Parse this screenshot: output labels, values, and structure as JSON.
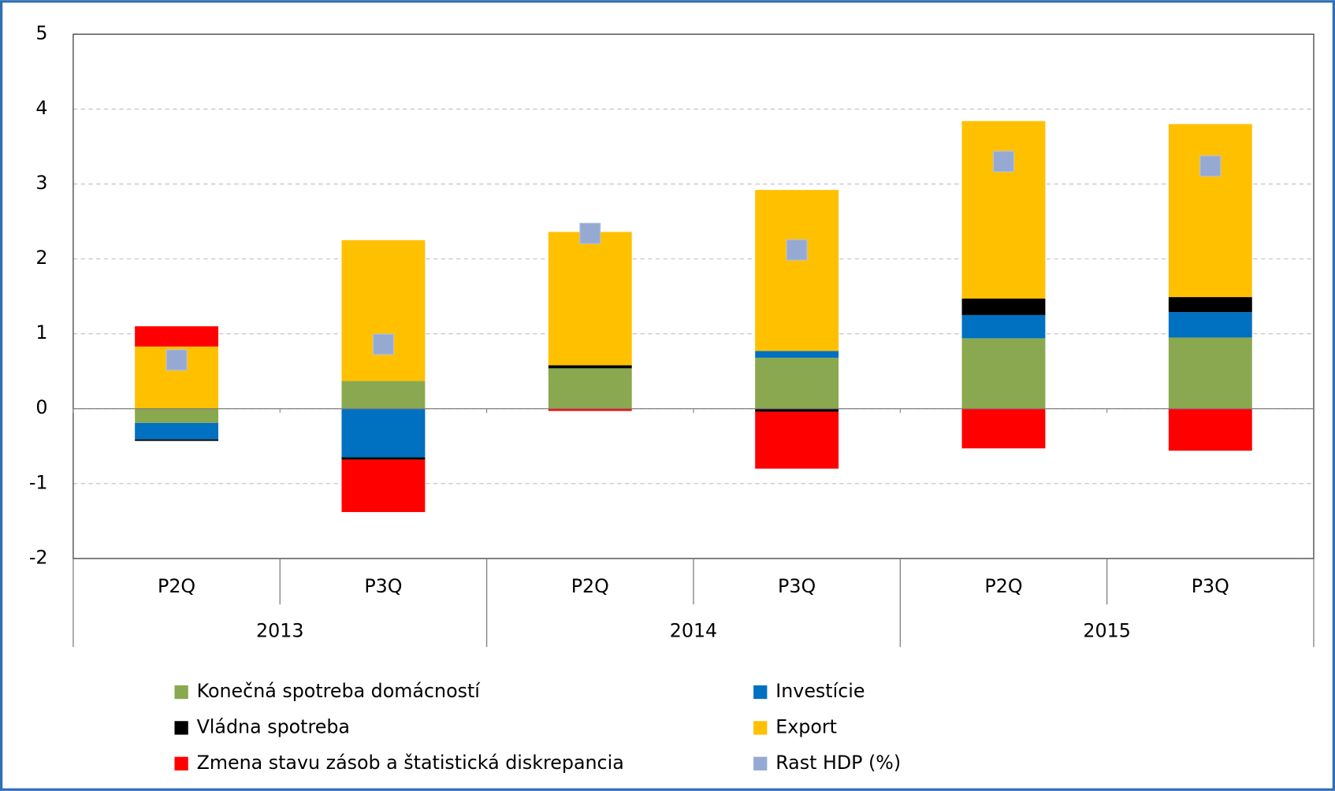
{
  "chart_data": {
    "type": "bar",
    "stacked": true,
    "categories": [
      "P2Q",
      "P3Q",
      "P2Q",
      "P3Q",
      "P2Q",
      "P3Q"
    ],
    "groups": [
      "2013",
      "2014",
      "2015"
    ],
    "series": [
      {
        "name": "Konečná spotreba domácností",
        "color": "#8aa84f",
        "values": [
          -0.19,
          0.37,
          0.54,
          0.68,
          0.94,
          0.95
        ]
      },
      {
        "name": "Investície",
        "color": "#0070c0",
        "values": [
          -0.22,
          -0.65,
          0.0,
          0.09,
          0.31,
          0.34
        ]
      },
      {
        "name": "Vládna spotreba",
        "color": "#000000",
        "values": [
          -0.02,
          -0.03,
          0.04,
          -0.04,
          0.22,
          0.2
        ]
      },
      {
        "name": "Export",
        "color": "#ffc000",
        "values": [
          0.83,
          1.88,
          1.78,
          2.15,
          2.37,
          2.31
        ]
      },
      {
        "name": "Zmena stavu zásob a štatistická diskrepancia",
        "color": "#ff0000",
        "values": [
          0.27,
          -0.7,
          -0.03,
          -0.76,
          -0.53,
          -0.56
        ]
      },
      {
        "name": "Rast HDP (%)",
        "color": "#95a9d3",
        "type": "scatter",
        "values": [
          0.65,
          0.86,
          2.34,
          2.12,
          3.3,
          3.24
        ]
      }
    ],
    "ylim": [
      -2,
      5
    ],
    "yticks": [
      -2,
      -1,
      0,
      1,
      2,
      3,
      4,
      5
    ],
    "grid": true,
    "legend": "bottom"
  }
}
